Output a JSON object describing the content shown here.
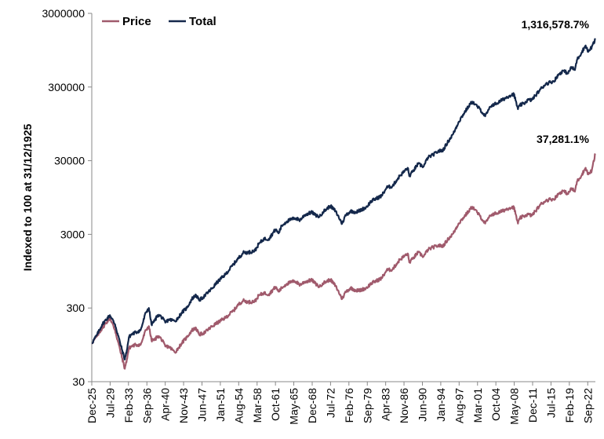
{
  "chart_data": {
    "type": "line",
    "title": "",
    "xlabel": "",
    "ylabel": "Indexed to 100 at 31/12/1925",
    "yscale": "log",
    "ylim": [
      30,
      3000000
    ],
    "xlim": [
      1925.96,
      2024.2
    ],
    "yticks": [
      30,
      300,
      3000,
      30000,
      300000,
      3000000
    ],
    "ytick_labels": [
      "30",
      "300",
      "3000",
      "30000",
      "300000",
      "3000000"
    ],
    "xtick_labels": [
      "Dec-25",
      "Jul-29",
      "Feb-33",
      "Sep-36",
      "Apr-40",
      "Nov-43",
      "Jun-47",
      "Jan-51",
      "Aug-54",
      "Mar-58",
      "Oct-61",
      "May-65",
      "Dec-68",
      "Jul-72",
      "Feb-76",
      "Sep-79",
      "Apr-83",
      "Nov-86",
      "Jun-90",
      "Jan-94",
      "Aug-97",
      "Mar-01",
      "Oct-04",
      "May-08",
      "Dec-11",
      "Jul-15",
      "Feb-19",
      "Sep-22"
    ],
    "xtick_positions": [
      1925.96,
      1929.54,
      1933.12,
      1936.71,
      1940.29,
      1943.87,
      1947.46,
      1951.04,
      1954.62,
      1958.21,
      1961.79,
      1965.37,
      1968.96,
      1972.54,
      1976.12,
      1979.71,
      1983.29,
      1986.87,
      1990.46,
      1994.04,
      1997.62,
      2001.21,
      2004.79,
      2008.37,
      2011.96,
      2015.54,
      2019.12,
      2022.71
    ],
    "legend": [
      {
        "name": "Price",
        "color": "#A05A6C"
      },
      {
        "name": "Total",
        "color": "#14284B"
      }
    ],
    "legend_position": "top-left",
    "grid": false,
    "series": [
      {
        "name": "Total",
        "color": "#14284B",
        "end_label": "1,316,578.7%",
        "x": [
          1925.96,
          1927,
          1928,
          1929.5,
          1930.5,
          1931.5,
          1932.4,
          1932.8,
          1933.2,
          1933.6,
          1934.5,
          1935.5,
          1936.5,
          1937.1,
          1937.6,
          1938.2,
          1938.8,
          1939.5,
          1940.3,
          1941,
          1942.2,
          1942.8,
          1943.5,
          1944.5,
          1945.5,
          1946.3,
          1946.9,
          1948,
          1949.5,
          1950.5,
          1952,
          1953.7,
          1954.5,
          1955.5,
          1956.5,
          1957.8,
          1958.5,
          1959.5,
          1960.5,
          1961.8,
          1962.4,
          1963,
          1964,
          1965.5,
          1966.6,
          1967.5,
          1968.9,
          1969.5,
          1970.4,
          1971,
          1972.5,
          1973.5,
          1974.8,
          1975.5,
          1976.5,
          1977.5,
          1978.2,
          1979.5,
          1980.5,
          1982.5,
          1983.5,
          1984.6,
          1986,
          1987.6,
          1987.9,
          1988.5,
          1989.6,
          1990.7,
          1991.5,
          1992.5,
          1993.5,
          1994.5,
          1995.5,
          1996.5,
          1997.5,
          1998.5,
          1999.5,
          2000.2,
          2000.7,
          2001.7,
          2002.7,
          2003.2,
          2004,
          2005,
          2006,
          2007.5,
          2008.3,
          2009.1,
          2009.5,
          2010.3,
          2011,
          2011.8,
          2012.5,
          2013.5,
          2014.5,
          2015.5,
          2016.1,
          2017,
          2017.9,
          2018.9,
          2019.5,
          2020.2,
          2020.6,
          2021.5,
          2022.3,
          2022.8,
          2023.5,
          2024.2
        ],
        "y": [
          100,
          130,
          180,
          240,
          180,
          100,
          60,
          80,
          120,
          130,
          140,
          150,
          260,
          300,
          180,
          200,
          240,
          230,
          190,
          210,
          200,
          220,
          260,
          300,
          400,
          450,
          380,
          440,
          560,
          680,
          850,
          1200,
          1400,
          1700,
          1700,
          1800,
          2200,
          2600,
          2600,
          3500,
          3100,
          3900,
          4500,
          5000,
          4700,
          5500,
          6000,
          5500,
          5200,
          6000,
          7300,
          6200,
          4200,
          5500,
          6200,
          6000,
          6300,
          7000,
          8500,
          10000,
          13000,
          13500,
          18500,
          24000,
          18500,
          21000,
          27000,
          25000,
          33000,
          36000,
          40000,
          42000,
          55000,
          70000,
          100000,
          130000,
          165000,
          190000,
          175000,
          150000,
          120000,
          140000,
          170000,
          180000,
          200000,
          230000,
          240000,
          150000,
          170000,
          180000,
          200000,
          200000,
          230000,
          280000,
          330000,
          350000,
          360000,
          440000,
          500000,
          460000,
          560000,
          510000,
          700000,
          880000,
          1100000,
          900000,
          1050000,
          1316678.7
        ]
      },
      {
        "name": "Price",
        "color": "#A05A6C",
        "end_label": "37,281.1%",
        "x": [
          1925.96,
          1927,
          1928,
          1929.5,
          1930.5,
          1931.5,
          1932.4,
          1932.8,
          1933.2,
          1933.6,
          1934.5,
          1935.5,
          1936.5,
          1937.1,
          1937.6,
          1938.2,
          1938.8,
          1939.5,
          1940.3,
          1941,
          1942.2,
          1942.8,
          1943.5,
          1944.5,
          1945.5,
          1946.3,
          1946.9,
          1948,
          1949.5,
          1950.5,
          1952,
          1953.7,
          1954.5,
          1955.5,
          1956.5,
          1957.8,
          1958.5,
          1959.5,
          1960.5,
          1961.8,
          1962.4,
          1963,
          1964,
          1965.5,
          1966.6,
          1967.5,
          1968.9,
          1969.5,
          1970.4,
          1971,
          1972.5,
          1973.5,
          1974.8,
          1975.5,
          1976.5,
          1977.5,
          1978.2,
          1979.5,
          1980.5,
          1982.5,
          1983.5,
          1984.6,
          1986,
          1987.6,
          1987.9,
          1988.5,
          1989.6,
          1990.7,
          1991.5,
          1992.5,
          1993.5,
          1994.5,
          1995.5,
          1996.5,
          1997.5,
          1998.5,
          1999.5,
          2000.2,
          2000.7,
          2001.7,
          2002.7,
          2003.2,
          2004,
          2005,
          2006,
          2007.5,
          2008.3,
          2009.1,
          2009.5,
          2010.3,
          2011,
          2011.8,
          2012.5,
          2013.5,
          2014.5,
          2015.5,
          2016.1,
          2017,
          2017.9,
          2018.9,
          2019.5,
          2020.2,
          2020.6,
          2021.5,
          2022.3,
          2022.8,
          2023.5,
          2024.2
        ],
        "y": [
          100,
          125,
          160,
          220,
          150,
          80,
          45,
          60,
          85,
          90,
          95,
          95,
          150,
          170,
          110,
          110,
          125,
          115,
          90,
          90,
          75,
          85,
          100,
          120,
          150,
          160,
          130,
          140,
          170,
          190,
          220,
          280,
          330,
          380,
          360,
          370,
          440,
          480,
          460,
          580,
          500,
          560,
          640,
          700,
          620,
          680,
          720,
          650,
          580,
          650,
          730,
          600,
          400,
          500,
          560,
          520,
          520,
          560,
          650,
          760,
          980,
          1000,
          1350,
          1650,
          1250,
          1380,
          1700,
          1500,
          1850,
          2000,
          2100,
          2100,
          2600,
          3100,
          4200,
          5100,
          6200,
          7100,
          6500,
          5300,
          4200,
          4800,
          5600,
          5800,
          6200,
          6900,
          7000,
          4200,
          5000,
          5300,
          5600,
          5400,
          6200,
          7600,
          8600,
          9000,
          9000,
          10600,
          11700,
          10600,
          12700,
          11400,
          15600,
          19000,
          24000,
          19500,
          22000,
          37381.1
        ]
      }
    ]
  }
}
